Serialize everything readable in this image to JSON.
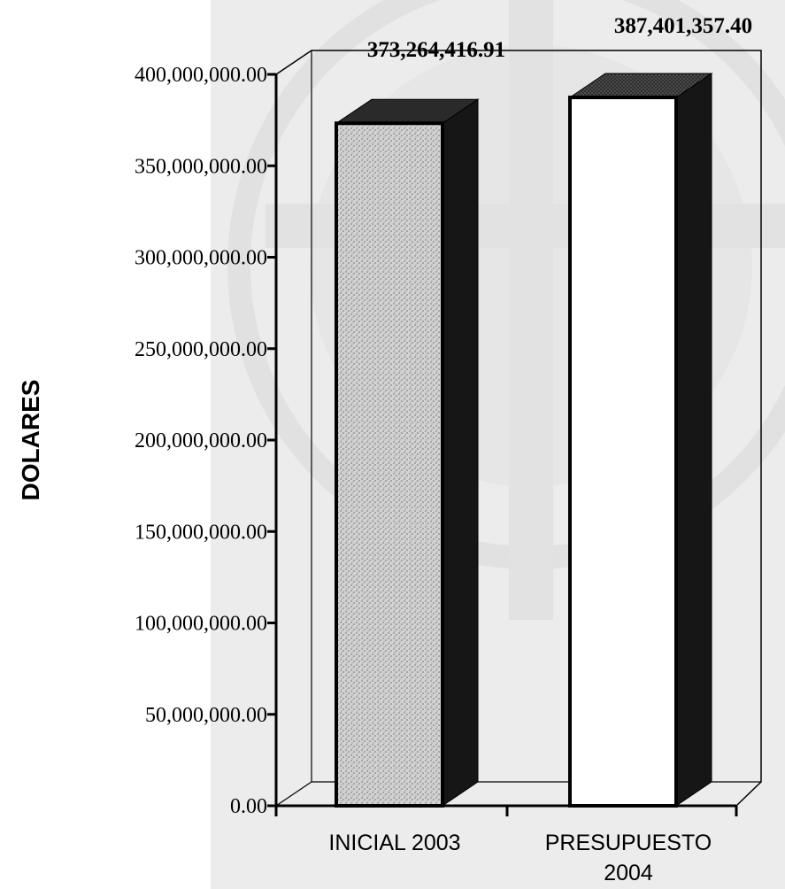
{
  "chart_data": {
    "type": "bar",
    "style": "3d",
    "categories": [
      "INICIAL 2003",
      "PRESUPUESTO\n2004"
    ],
    "values": [
      373264416.91,
      387401357.4
    ],
    "value_labels": [
      "373,264,416.91",
      "387,401,357.40"
    ],
    "ylabel": "DOLARES",
    "ylim": [
      0,
      400000000
    ],
    "yticks": [
      0,
      50000000,
      100000000,
      150000000,
      200000000,
      250000000,
      300000000,
      350000000,
      400000000
    ],
    "ytick_labels": [
      "0.00",
      "50,000,000.00",
      "100,000,000.00",
      "150,000,000.00",
      "200,000,000.00",
      "250,000,000.00",
      "300,000,000.00",
      "350,000,000.00",
      "400,000,000.00"
    ],
    "grid": false,
    "legend": "none",
    "colors": {
      "bar_front": [
        "#c9c9c9",
        "#ffffff"
      ],
      "bar_side": "#161616",
      "bar_top": "#2a2a2a",
      "background_panel": "#ececec",
      "axis": "#000000"
    }
  }
}
